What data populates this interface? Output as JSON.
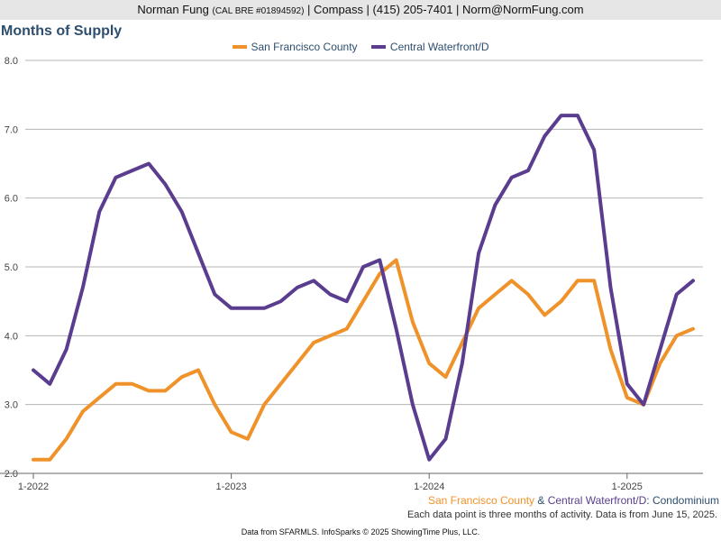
{
  "header": {
    "name": "Norman Fung",
    "license": "(CAL BRE #01894592)",
    "rest": "| Compass | (415) 205-7401 | Norm@NormFung.com"
  },
  "chart_data": {
    "type": "line",
    "title": "Months of Supply",
    "xlabel": "",
    "ylabel": "",
    "ylim": [
      2.0,
      8.0
    ],
    "yticks": [
      "2.0",
      "3.0",
      "4.0",
      "5.0",
      "6.0",
      "7.0",
      "8.0"
    ],
    "xticks": [
      {
        "label": "1-2022",
        "index": 0
      },
      {
        "label": "1-2023",
        "index": 12
      },
      {
        "label": "1-2024",
        "index": 24
      },
      {
        "label": "1-2025",
        "index": 36
      }
    ],
    "grid": true,
    "legend_position": "top-center",
    "series": [
      {
        "name": "San Francisco County",
        "color": "#f0922a",
        "values": [
          2.2,
          2.2,
          2.5,
          2.9,
          3.1,
          3.3,
          3.3,
          3.2,
          3.2,
          3.4,
          3.5,
          3.0,
          2.6,
          2.5,
          3.0,
          3.3,
          3.6,
          3.9,
          4.0,
          4.1,
          4.5,
          4.9,
          5.1,
          4.2,
          3.6,
          3.4,
          3.9,
          4.4,
          4.6,
          4.8,
          4.6,
          4.3,
          4.5,
          4.8,
          4.8,
          3.8,
          3.1,
          3.0,
          3.6,
          4.0,
          4.1
        ]
      },
      {
        "name": "Central Waterfront/D",
        "color": "#5a3d8f",
        "values": [
          3.5,
          3.3,
          3.8,
          4.7,
          5.8,
          6.3,
          6.4,
          6.5,
          6.2,
          5.8,
          5.2,
          4.6,
          4.4,
          4.4,
          4.4,
          4.5,
          4.7,
          4.8,
          4.6,
          4.5,
          5.0,
          5.1,
          4.1,
          3.0,
          2.2,
          2.5,
          3.6,
          5.2,
          5.9,
          6.3,
          6.4,
          6.9,
          7.2,
          7.2,
          6.7,
          4.7,
          3.3,
          3.0,
          3.8,
          4.6,
          4.8
        ]
      }
    ]
  },
  "footer": {
    "series_a": "San Francisco County",
    "amp": " & ",
    "series_b": "Central Waterfront/D",
    "suffix": ": Condominium",
    "note": "Each data point is three months of activity. Data is from June 15, 2025.",
    "credit": "Data from SFARMLS. InfoSparks © 2025 ShowingTime Plus, LLC."
  }
}
